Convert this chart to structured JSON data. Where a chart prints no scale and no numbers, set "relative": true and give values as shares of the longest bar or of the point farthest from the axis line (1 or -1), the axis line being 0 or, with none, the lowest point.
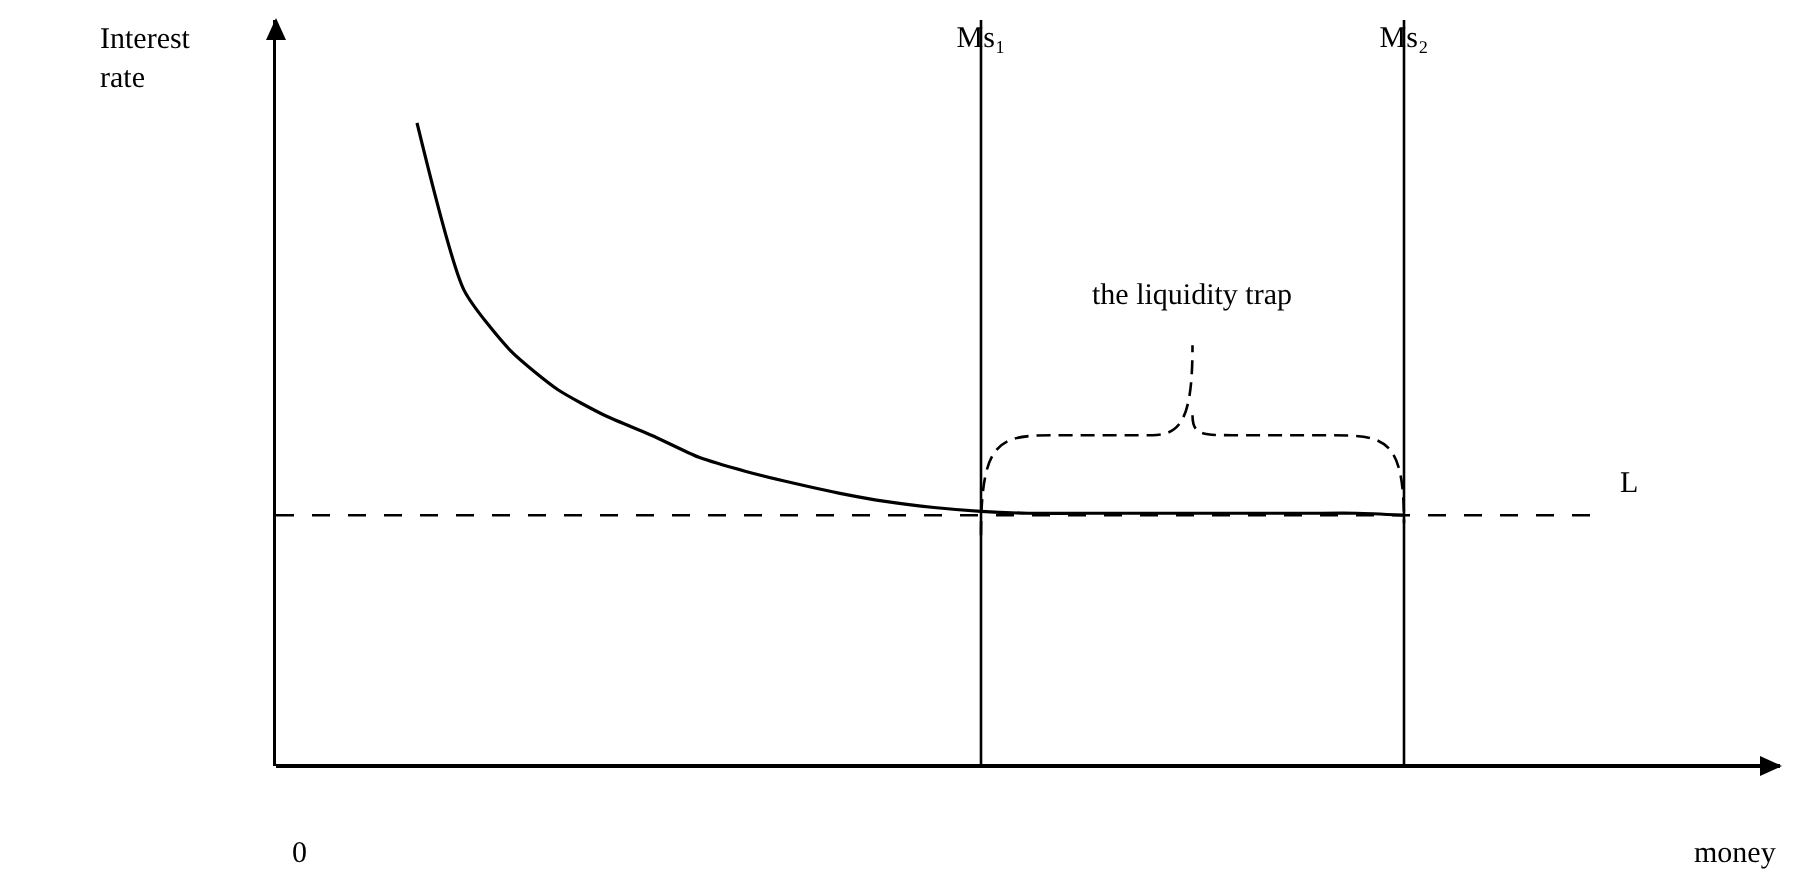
{
  "chart_data": {
    "type": "line",
    "relative": true,
    "xlabel": "money",
    "ylabel": "Interest rate",
    "categories": [
      null,
      null,
      null,
      null,
      null,
      null,
      null,
      null,
      null,
      null,
      null,
      null,
      null,
      null,
      null,
      "Ms₁",
      null,
      null,
      null,
      null,
      null,
      null,
      null,
      null,
      "Ms₂",
      null,
      null,
      null,
      null,
      null,
      null,
      null,
      null
    ],
    "series": [
      {
        "color": "#000000",
        "values": [
          null,
          null,
          null,
          1.0,
          0.74,
          0.645,
          0.585,
          0.545,
          0.514,
          0.48,
          0.458,
          0.44,
          0.424,
          0.411,
          0.402,
          0.396,
          0.393,
          0.393,
          0.393,
          0.393,
          0.393,
          0.393,
          0.393,
          0.393,
          0.39,
          null,
          null,
          null,
          null,
          null,
          null,
          null,
          null
        ]
      }
    ],
    "ref_lines": [
      {
        "axis": "x",
        "value": "Ms₁",
        "color": "#000000",
        "line_style": "solid"
      },
      {
        "axis": "x",
        "value": "Ms₂",
        "color": "#000000",
        "line_style": "solid"
      },
      {
        "axis": "y",
        "value": 0.39,
        "label": "L",
        "color": "#000000",
        "line_style": "dashed"
      }
    ],
    "annotations": [
      "the liquidity trap",
      "0"
    ],
    "grid": false,
    "marker": "none",
    "line_style": "solid"
  }
}
